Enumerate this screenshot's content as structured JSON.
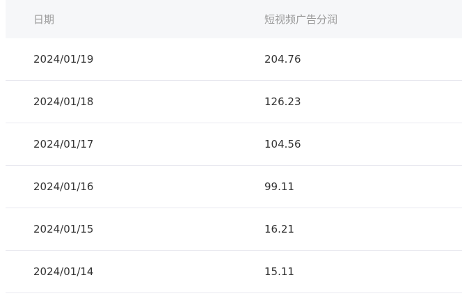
{
  "table": {
    "columns": [
      "日期",
      "短视频广告分润"
    ],
    "rows": [
      {
        "date": "2024/01/19",
        "amount": "204.76"
      },
      {
        "date": "2024/01/18",
        "amount": "126.23"
      },
      {
        "date": "2024/01/17",
        "amount": "104.56"
      },
      {
        "date": "2024/01/16",
        "amount": "99.11"
      },
      {
        "date": "2024/01/15",
        "amount": "16.21"
      },
      {
        "date": "2024/01/14",
        "amount": "15.11"
      }
    ]
  }
}
